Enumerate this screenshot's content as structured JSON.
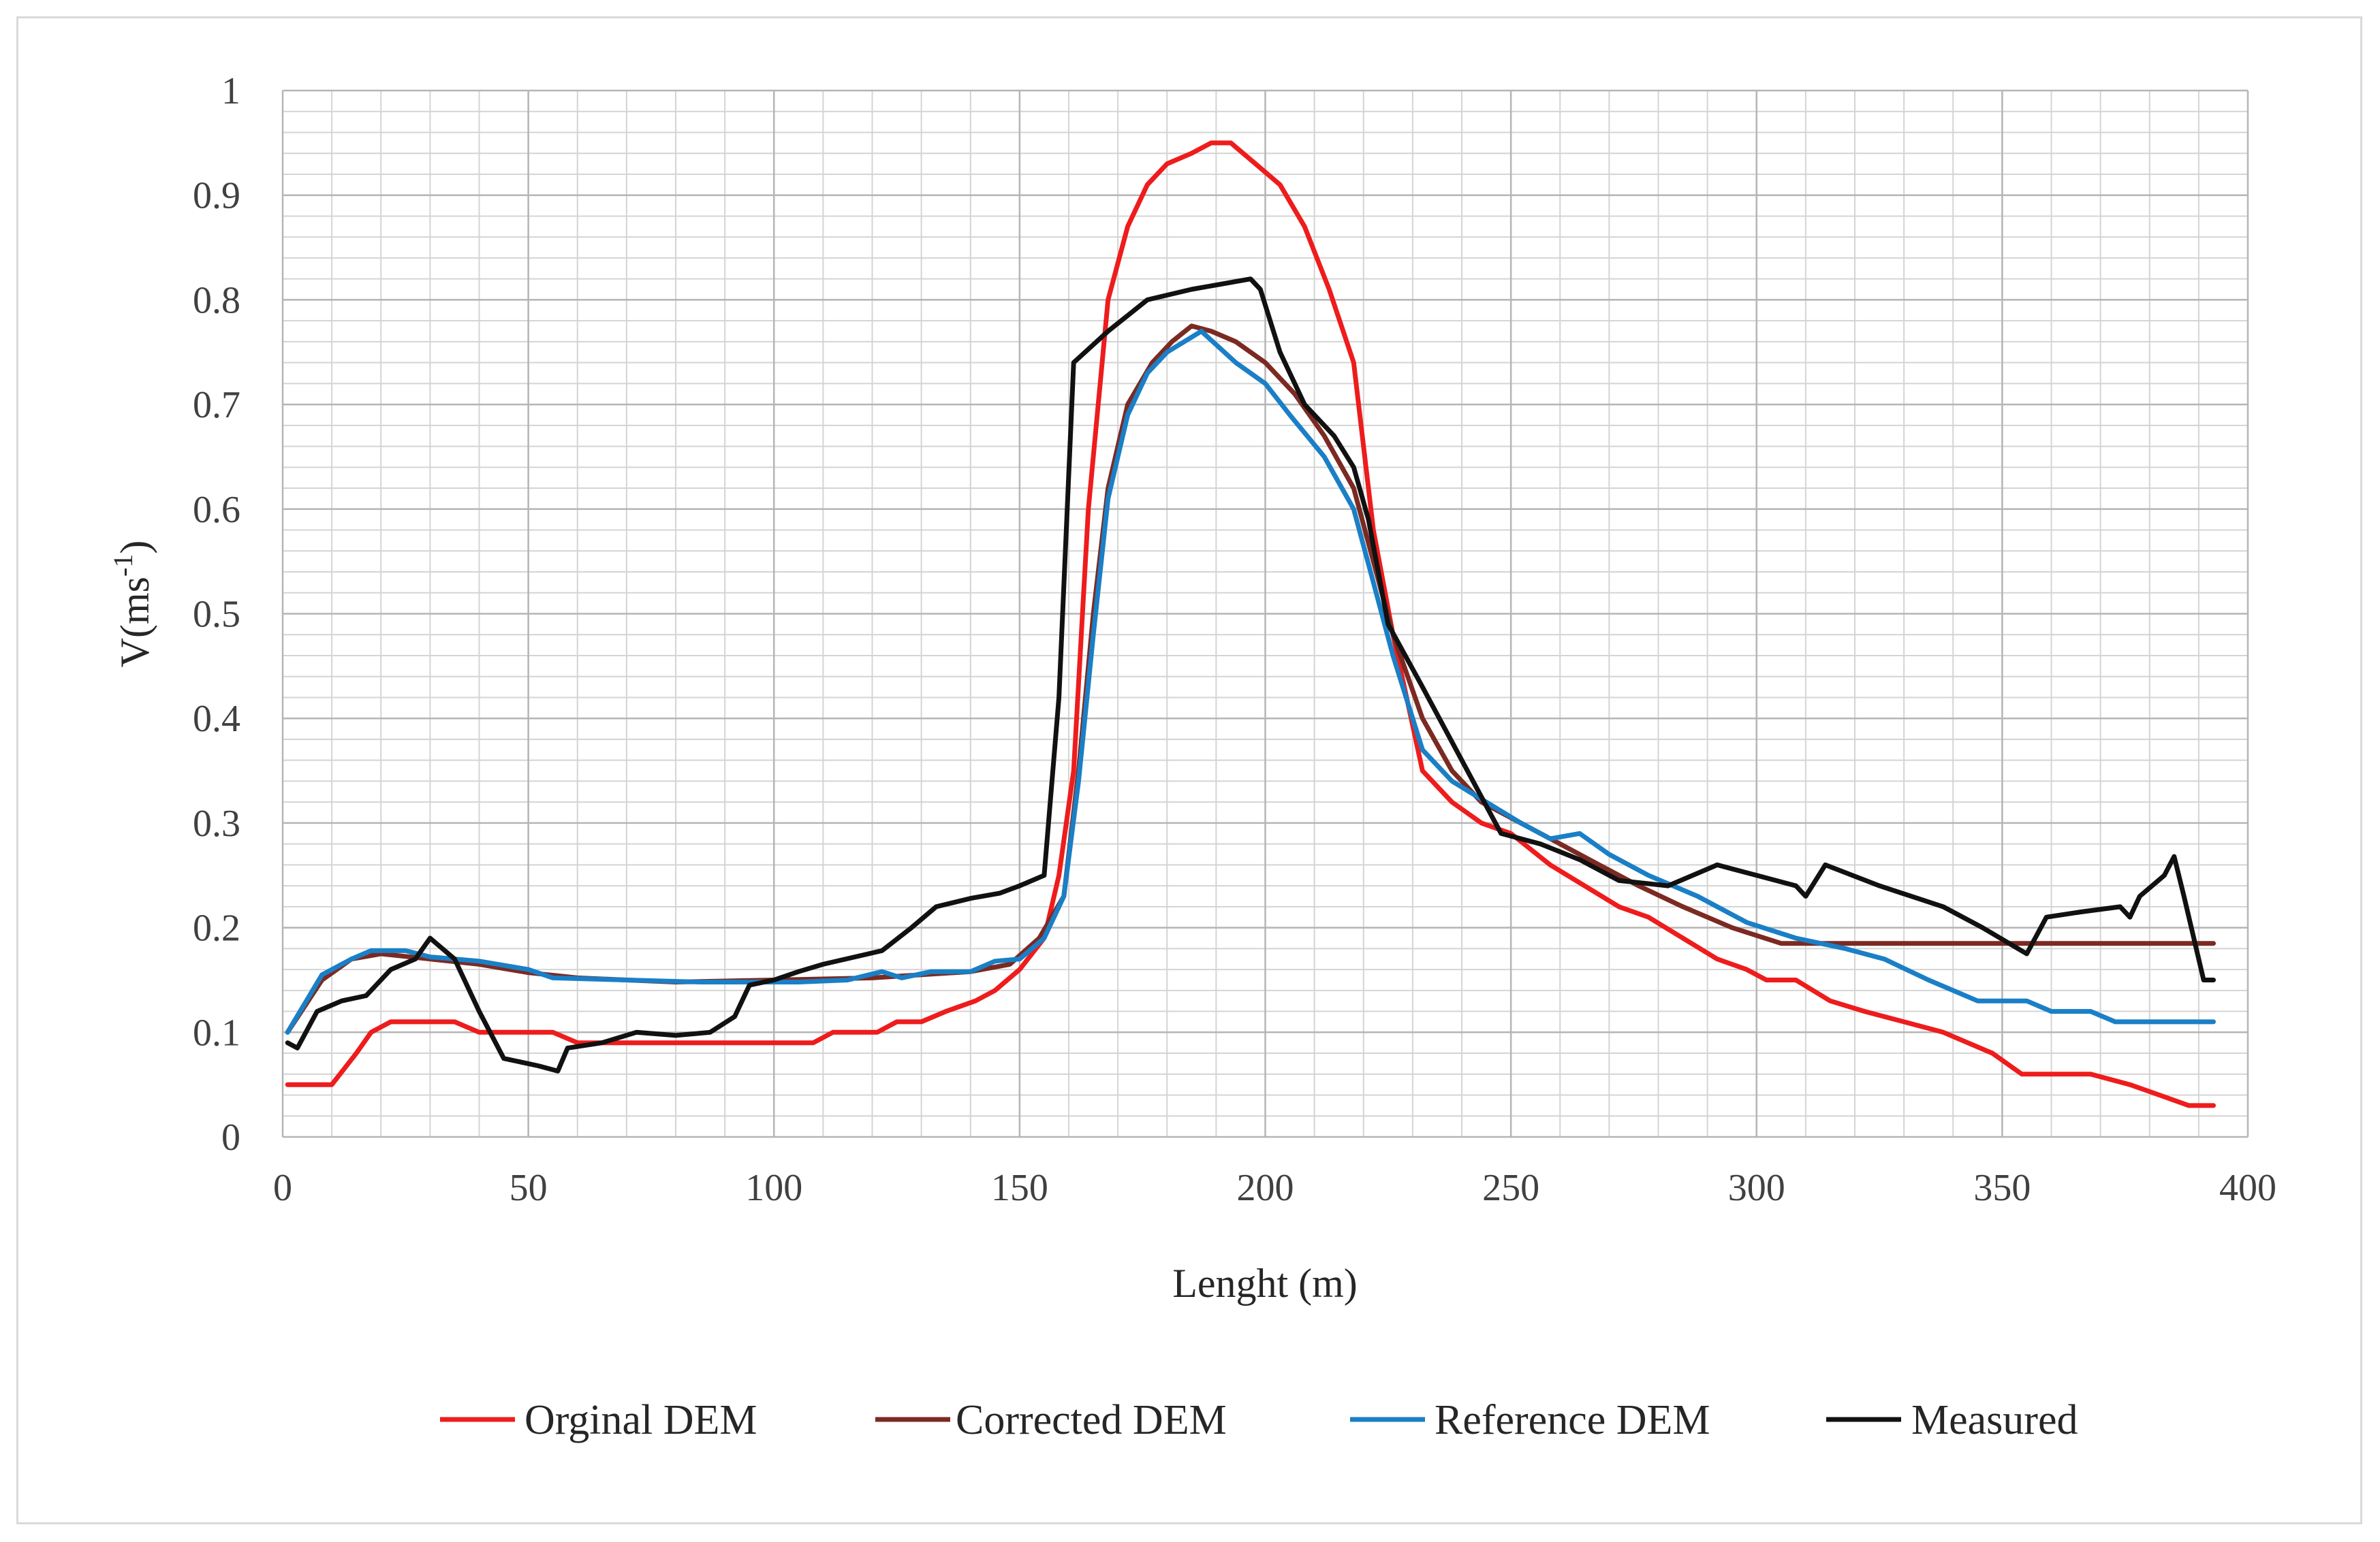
{
  "chart_data": {
    "type": "line",
    "title": "",
    "xlabel": "Lenght (m)",
    "ylabel_main": "V(ms",
    "ylabel_sup": "-1",
    "ylabel_close": ")",
    "xlim": [
      0,
      400
    ],
    "ylim": [
      0,
      1
    ],
    "x_major_ticks": [
      0,
      50,
      100,
      150,
      200,
      250,
      300,
      350,
      400
    ],
    "x_tick_labels": [
      "0",
      "50",
      "100",
      "150",
      "200",
      "250",
      "300",
      "350",
      "400"
    ],
    "y_major_ticks": [
      0,
      0.1,
      0.2,
      0.3,
      0.4,
      0.5,
      0.6,
      0.7,
      0.8,
      0.9,
      1
    ],
    "y_tick_labels": [
      "0",
      "0.1",
      "0.2",
      "0.3",
      "0.4",
      "0.5",
      "0.6",
      "0.7",
      "0.8",
      "0.9",
      "1"
    ],
    "x_minor_step": 10,
    "y_minor_step": 0.02,
    "grid": true,
    "legend_position": "bottom",
    "series": [
      {
        "name": "Orginal DEM",
        "color": "#ee1c1c",
        "points": [
          [
            1,
            0.05
          ],
          [
            10,
            0.05
          ],
          [
            15,
            0.08
          ],
          [
            18,
            0.1
          ],
          [
            22,
            0.11
          ],
          [
            35,
            0.11
          ],
          [
            40,
            0.1
          ],
          [
            55,
            0.1
          ],
          [
            60,
            0.09
          ],
          [
            108,
            0.09
          ],
          [
            112,
            0.1
          ],
          [
            121,
            0.1
          ],
          [
            125,
            0.11
          ],
          [
            130,
            0.11
          ],
          [
            135,
            0.12
          ],
          [
            141,
            0.13
          ],
          [
            145,
            0.14
          ],
          [
            150,
            0.16
          ],
          [
            155,
            0.19
          ],
          [
            158,
            0.25
          ],
          [
            161,
            0.35
          ],
          [
            164,
            0.6
          ],
          [
            168,
            0.8
          ],
          [
            172,
            0.87
          ],
          [
            176,
            0.91
          ],
          [
            180,
            0.93
          ],
          [
            185,
            0.94
          ],
          [
            189,
            0.95
          ],
          [
            193,
            0.95
          ],
          [
            198,
            0.93
          ],
          [
            203,
            0.91
          ],
          [
            208,
            0.87
          ],
          [
            213,
            0.81
          ],
          [
            218,
            0.74
          ],
          [
            222,
            0.58
          ],
          [
            226,
            0.48
          ],
          [
            232,
            0.35
          ],
          [
            238,
            0.32
          ],
          [
            244,
            0.3
          ],
          [
            250,
            0.29
          ],
          [
            258,
            0.26
          ],
          [
            265,
            0.24
          ],
          [
            272,
            0.22
          ],
          [
            278,
            0.21
          ],
          [
            285,
            0.19
          ],
          [
            292,
            0.17
          ],
          [
            298,
            0.16
          ],
          [
            302,
            0.15
          ],
          [
            308,
            0.15
          ],
          [
            315,
            0.13
          ],
          [
            322,
            0.12
          ],
          [
            330,
            0.11
          ],
          [
            338,
            0.1
          ],
          [
            348,
            0.08
          ],
          [
            354,
            0.06
          ],
          [
            362,
            0.06
          ],
          [
            368,
            0.06
          ],
          [
            376,
            0.05
          ],
          [
            382,
            0.04
          ],
          [
            388,
            0.03
          ],
          [
            393,
            0.03
          ]
        ]
      },
      {
        "name": "Corrected DEM",
        "color": "#7b2a22",
        "points": [
          [
            1,
            0.1
          ],
          [
            8,
            0.15
          ],
          [
            14,
            0.17
          ],
          [
            20,
            0.175
          ],
          [
            30,
            0.17
          ],
          [
            40,
            0.165
          ],
          [
            50,
            0.157
          ],
          [
            60,
            0.152
          ],
          [
            70,
            0.15
          ],
          [
            80,
            0.148
          ],
          [
            100,
            0.15
          ],
          [
            120,
            0.152
          ],
          [
            130,
            0.155
          ],
          [
            140,
            0.158
          ],
          [
            148,
            0.165
          ],
          [
            154,
            0.19
          ],
          [
            159,
            0.23
          ],
          [
            162,
            0.35
          ],
          [
            165,
            0.5
          ],
          [
            168,
            0.62
          ],
          [
            172,
            0.7
          ],
          [
            177,
            0.74
          ],
          [
            181,
            0.76
          ],
          [
            185,
            0.775
          ],
          [
            189,
            0.77
          ],
          [
            194,
            0.76
          ],
          [
            200,
            0.74
          ],
          [
            206,
            0.71
          ],
          [
            212,
            0.67
          ],
          [
            218,
            0.62
          ],
          [
            222,
            0.55
          ],
          [
            226,
            0.48
          ],
          [
            232,
            0.4
          ],
          [
            238,
            0.35
          ],
          [
            244,
            0.32
          ],
          [
            252,
            0.3
          ],
          [
            260,
            0.28
          ],
          [
            268,
            0.26
          ],
          [
            276,
            0.24
          ],
          [
            285,
            0.22
          ],
          [
            295,
            0.2
          ],
          [
            305,
            0.185
          ],
          [
            315,
            0.185
          ],
          [
            393,
            0.185
          ]
        ]
      },
      {
        "name": "Reference DEM",
        "color": "#1a7fc6",
        "points": [
          [
            1,
            0.1
          ],
          [
            8,
            0.155
          ],
          [
            14,
            0.17
          ],
          [
            18,
            0.178
          ],
          [
            25,
            0.178
          ],
          [
            30,
            0.172
          ],
          [
            40,
            0.168
          ],
          [
            50,
            0.16
          ],
          [
            55,
            0.152
          ],
          [
            70,
            0.15
          ],
          [
            85,
            0.148
          ],
          [
            105,
            0.148
          ],
          [
            115,
            0.15
          ],
          [
            122,
            0.158
          ],
          [
            126,
            0.152
          ],
          [
            132,
            0.158
          ],
          [
            140,
            0.158
          ],
          [
            145,
            0.168
          ],
          [
            150,
            0.17
          ],
          [
            155,
            0.19
          ],
          [
            159,
            0.23
          ],
          [
            162,
            0.34
          ],
          [
            165,
            0.48
          ],
          [
            168,
            0.61
          ],
          [
            172,
            0.69
          ],
          [
            176,
            0.73
          ],
          [
            180,
            0.75
          ],
          [
            187,
            0.77
          ],
          [
            194,
            0.74
          ],
          [
            200,
            0.72
          ],
          [
            205,
            0.69
          ],
          [
            212,
            0.65
          ],
          [
            218,
            0.6
          ],
          [
            222,
            0.53
          ],
          [
            226,
            0.46
          ],
          [
            232,
            0.37
          ],
          [
            238,
            0.34
          ],
          [
            245,
            0.32
          ],
          [
            252,
            0.3
          ],
          [
            258,
            0.285
          ],
          [
            264,
            0.29
          ],
          [
            270,
            0.27
          ],
          [
            278,
            0.25
          ],
          [
            288,
            0.23
          ],
          [
            298,
            0.205
          ],
          [
            308,
            0.19
          ],
          [
            318,
            0.18
          ],
          [
            326,
            0.17
          ],
          [
            335,
            0.15
          ],
          [
            345,
            0.13
          ],
          [
            355,
            0.13
          ],
          [
            360,
            0.12
          ],
          [
            368,
            0.12
          ],
          [
            373,
            0.11
          ],
          [
            393,
            0.11
          ]
        ]
      },
      {
        "name": "Measured",
        "color": "#111111",
        "points": [
          [
            1,
            0.09
          ],
          [
            3,
            0.085
          ],
          [
            7,
            0.12
          ],
          [
            12,
            0.13
          ],
          [
            17,
            0.135
          ],
          [
            22,
            0.16
          ],
          [
            27,
            0.17
          ],
          [
            30,
            0.19
          ],
          [
            35,
            0.17
          ],
          [
            40,
            0.12
          ],
          [
            45,
            0.075
          ],
          [
            52,
            0.068
          ],
          [
            56,
            0.063
          ],
          [
            58,
            0.085
          ],
          [
            65,
            0.09
          ],
          [
            72,
            0.1
          ],
          [
            80,
            0.097
          ],
          [
            87,
            0.1
          ],
          [
            92,
            0.115
          ],
          [
            95,
            0.145
          ],
          [
            100,
            0.15
          ],
          [
            105,
            0.158
          ],
          [
            110,
            0.165
          ],
          [
            122,
            0.178
          ],
          [
            128,
            0.2
          ],
          [
            133,
            0.22
          ],
          [
            140,
            0.228
          ],
          [
            146,
            0.233
          ],
          [
            150,
            0.24
          ],
          [
            155,
            0.25
          ],
          [
            158,
            0.42
          ],
          [
            161,
            0.74
          ],
          [
            168,
            0.77
          ],
          [
            176,
            0.8
          ],
          [
            185,
            0.81
          ],
          [
            197,
            0.82
          ],
          [
            199,
            0.81
          ],
          [
            203,
            0.75
          ],
          [
            208,
            0.7
          ],
          [
            214,
            0.67
          ],
          [
            218,
            0.64
          ],
          [
            221,
            0.59
          ],
          [
            225,
            0.49
          ],
          [
            232,
            0.43
          ],
          [
            240,
            0.36
          ],
          [
            248,
            0.29
          ],
          [
            256,
            0.28
          ],
          [
            264,
            0.265
          ],
          [
            272,
            0.245
          ],
          [
            282,
            0.24
          ],
          [
            292,
            0.26
          ],
          [
            300,
            0.25
          ],
          [
            308,
            0.24
          ],
          [
            310,
            0.23
          ],
          [
            314,
            0.26
          ],
          [
            325,
            0.24
          ],
          [
            338,
            0.22
          ],
          [
            346,
            0.2
          ],
          [
            355,
            0.175
          ],
          [
            359,
            0.21
          ],
          [
            366,
            0.215
          ],
          [
            374,
            0.22
          ],
          [
            376,
            0.21
          ],
          [
            378,
            0.23
          ],
          [
            383,
            0.25
          ],
          [
            385,
            0.268
          ],
          [
            387,
            0.23
          ],
          [
            391,
            0.15
          ],
          [
            393,
            0.15
          ]
        ]
      }
    ]
  }
}
